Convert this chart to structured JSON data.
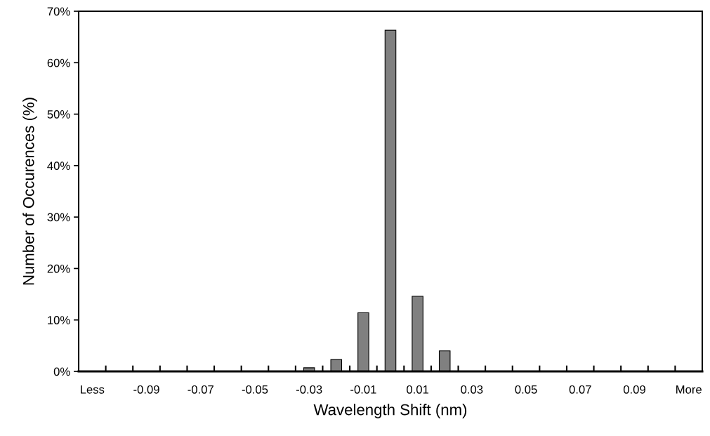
{
  "chart_data": {
    "type": "bar",
    "xlabel": "Wavelength Shift (nm)",
    "ylabel": "Number of Occurences (%)",
    "categories": [
      "Less",
      null,
      "-0.09",
      null,
      "-0.07",
      null,
      "-0.05",
      null,
      "-0.03",
      null,
      "-0.01",
      null,
      "0.01",
      null,
      "0.03",
      null,
      "0.05",
      null,
      "0.07",
      null,
      "0.09",
      null,
      "More"
    ],
    "values": [
      0,
      0,
      0,
      0,
      0,
      0,
      0,
      0,
      0.7,
      2.3,
      11.4,
      66.3,
      14.6,
      4.0,
      0,
      0,
      0,
      0,
      0,
      0,
      0,
      0,
      0
    ],
    "color": "#808080",
    "ylim": [
      0,
      70
    ],
    "yticks": [
      {
        "value": 0,
        "label": "0%"
      },
      {
        "value": 10,
        "label": "10%"
      },
      {
        "value": 20,
        "label": "20%"
      },
      {
        "value": 30,
        "label": "30%"
      },
      {
        "value": 40,
        "label": "40%"
      },
      {
        "value": 50,
        "label": "50%"
      },
      {
        "value": 60,
        "label": "60%"
      },
      {
        "value": 70,
        "label": "70%"
      }
    ],
    "grid": false
  }
}
